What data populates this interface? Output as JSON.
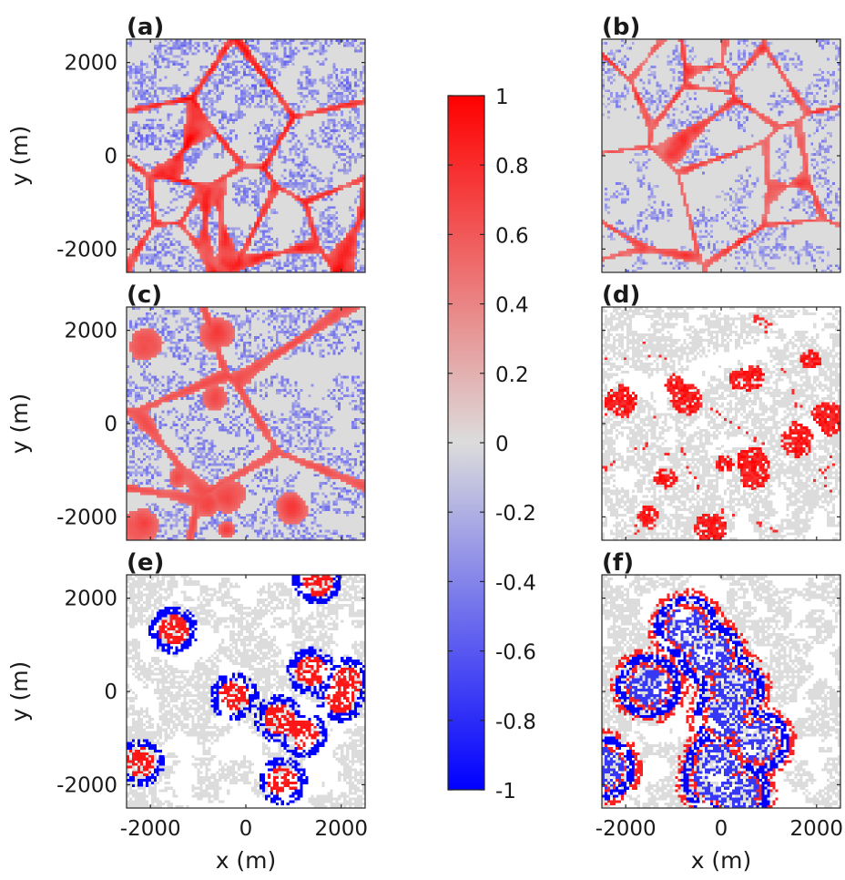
{
  "chart_data": {
    "type": "heatmap",
    "layout": "3x2 panel grid with shared colorbar",
    "panels": [
      {
        "label": "(a)",
        "pattern": "cellular_network",
        "neg_density": 0.55,
        "pos_strength": 0.85,
        "seed": 11
      },
      {
        "label": "(b)",
        "pattern": "cellular_network_light",
        "neg_density": 0.42,
        "pos_strength": 0.75,
        "seed": 23
      },
      {
        "label": "(c)",
        "pattern": "large_cells_blobs",
        "neg_density": 0.45,
        "pos_strength": 0.7,
        "seed": 37
      },
      {
        "label": "(d)",
        "pattern": "sparse_blobs",
        "neg_density": 0.0,
        "pos_strength": 0.6,
        "seed": 41
      },
      {
        "label": "(e)",
        "pattern": "rings",
        "neg_density": 0.0,
        "pos_strength": 0.6,
        "seed": 53
      },
      {
        "label": "(f)",
        "pattern": "large_rings",
        "neg_density": 0.0,
        "pos_strength": 0.7,
        "seed": 67
      }
    ],
    "xlabel": "x (m)",
    "ylabel": "y (m)",
    "xlim": [
      -2500,
      2500
    ],
    "ylim": [
      -2500,
      2500
    ],
    "x_ticks": [
      -2000,
      0,
      2000
    ],
    "y_ticks": [
      -2000,
      0,
      2000
    ],
    "x_tick_labels": [
      "-2000",
      "0",
      "2000"
    ],
    "y_tick_labels": [
      "-2000",
      "0",
      "2000"
    ],
    "colorbar": {
      "range": [
        -1,
        1
      ],
      "ticks": [
        1,
        0.8,
        0.6,
        0.4,
        0.2,
        0,
        -0.2,
        -0.4,
        -0.6,
        -0.8,
        -1
      ],
      "tick_labels": [
        "1",
        "0.8",
        "0.6",
        "0.4",
        "0.2",
        "0",
        "-0.2",
        "-0.4",
        "-0.6",
        "-0.8",
        "-1"
      ],
      "colors": {
        "min": "#0000ff",
        "mid": "#dcdcdc",
        "max": "#ff0000"
      }
    }
  }
}
